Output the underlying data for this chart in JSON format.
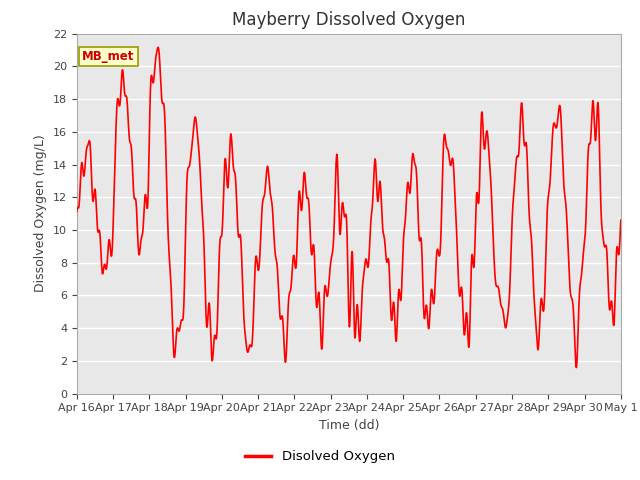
{
  "title": "Mayberry Dissolved Oxygen",
  "ylabel": "Dissolved Oxygen (mg/L)",
  "xlabel": "Time (dd)",
  "legend_label": "Disolved Oxygen",
  "mb_label": "MB_met",
  "line_color": "#ff0000",
  "bg_color": "#e8e8e8",
  "ylim": [
    0,
    22
  ],
  "yticks": [
    0,
    2,
    4,
    6,
    8,
    10,
    12,
    14,
    16,
    18,
    20,
    22
  ],
  "xtick_labels": [
    "Apr 16",
    "Apr 17",
    "Apr 18",
    "Apr 19",
    "Apr 20",
    "Apr 21",
    "Apr 22",
    "Apr 23",
    "Apr 24",
    "Apr 25",
    "Apr 26",
    "Apr 27",
    "Apr 28",
    "Apr 29",
    "Apr 30",
    "May 1"
  ],
  "num_days": 15.0,
  "points_per_day": 144,
  "title_fontsize": 12,
  "axis_label_fontsize": 9,
  "tick_fontsize": 8
}
